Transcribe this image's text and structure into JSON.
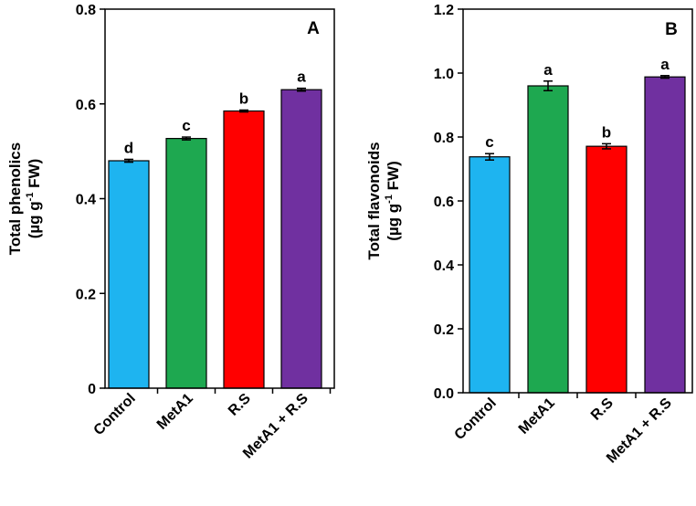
{
  "chart_data": [
    {
      "type": "bar",
      "panel": "A",
      "categories": [
        "Control",
        "MetA1",
        "R.S",
        "MetA1 + R.S"
      ],
      "values": [
        0.48,
        0.527,
        0.585,
        0.63
      ],
      "errors": [
        0.003,
        0.003,
        0.002,
        0.003
      ],
      "significance": [
        "d",
        "c",
        "b",
        "a"
      ],
      "colors": [
        "#1EB4F0",
        "#1EA850",
        "#FF0000",
        "#7030A0"
      ],
      "ylabel_line1": "Total phenolics",
      "ylabel_line2_prefix": "(µg g",
      "ylabel_line2_sup": "-1",
      "ylabel_line2_suffix": " FW)",
      "ylim": [
        0,
        0.8
      ],
      "yticks": [
        0,
        0.2,
        0.4,
        0.6,
        0.8
      ],
      "ytick_labels": [
        "0",
        "0.2",
        "0.4",
        "0.6",
        "0.8"
      ],
      "grid": false
    },
    {
      "type": "bar",
      "panel": "B",
      "categories": [
        "Control",
        "MetA1",
        "R.S",
        "MetA1 + R.S"
      ],
      "values": [
        0.738,
        0.96,
        0.771,
        0.988
      ],
      "errors": [
        0.01,
        0.015,
        0.008,
        0.004
      ],
      "significance": [
        "c",
        "a",
        "b",
        "a"
      ],
      "colors": [
        "#1EB4F0",
        "#1EA850",
        "#FF0000",
        "#7030A0"
      ],
      "ylabel_line1": "Total flavonoids",
      "ylabel_line2_prefix": "(µg g",
      "ylabel_line2_sup": "-1",
      "ylabel_line2_suffix": " FW)",
      "ylim": [
        0,
        1.2
      ],
      "yticks": [
        0,
        0.2,
        0.4,
        0.6,
        0.8,
        1.0,
        1.2
      ],
      "ytick_labels": [
        "0.0",
        "0.2",
        "0.4",
        "0.6",
        "0.8",
        "1.0",
        "1.2"
      ],
      "grid": false
    }
  ]
}
